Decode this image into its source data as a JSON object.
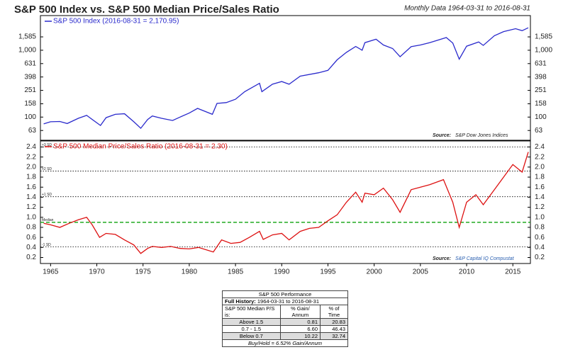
{
  "chart_data": [
    {
      "type": "line",
      "title": "S&P 500 Index vs. S&P 500 Median Price/Sales Ratio",
      "subtitle": "Monthly Data 1964-03-31 to 2016-08-31",
      "log_scale": true,
      "ylim": [
        45,
        3300
      ],
      "yticks": [
        63,
        100,
        158,
        251,
        398,
        631,
        {
          "value": 1000,
          "label": "1,000"
        },
        {
          "value": 1585,
          "label": "1,585"
        }
      ],
      "source_label": "Source:",
      "source": "S&P Dow Jones Indices",
      "x": [
        1964.25,
        1965,
        1966,
        1966.8,
        1968,
        1968.9,
        1970.4,
        1971,
        1972,
        1973,
        1974,
        1974.75,
        1975.5,
        1976,
        1977,
        1978.2,
        1979,
        1980,
        1980.9,
        1982.5,
        1983,
        1984,
        1985,
        1986,
        1987.6,
        1987.85,
        1989,
        1990,
        1990.8,
        1992,
        1994,
        1995,
        1996,
        1997,
        1998,
        1998.7,
        1999,
        2000.2,
        2001,
        2002,
        2002.8,
        2004,
        2005,
        2006,
        2007.8,
        2008.5,
        2009.2,
        2010,
        2011.3,
        2011.8,
        2013,
        2014,
        2015.3,
        2016,
        2016.67
      ],
      "series": [
        {
          "name": "S&P 500 Index (2016-08-31 = 2,170.95)",
          "color": "#2a2acc",
          "values": [
            79,
            85,
            86,
            80,
            96,
            106,
            75,
            98,
            110,
            112,
            85,
            68,
            92,
            104,
            96,
            89,
            100,
            115,
            135,
            110,
            160,
            165,
            185,
            240,
            320,
            240,
            310,
            340,
            310,
            410,
            460,
            500,
            720,
            930,
            1140,
            1000,
            1300,
            1460,
            1200,
            1060,
            800,
            1130,
            1200,
            1300,
            1550,
            1280,
            735,
            1150,
            1330,
            1180,
            1650,
            1900,
            2100,
            1960,
            2170.95
          ]
        }
      ]
    },
    {
      "type": "line",
      "ylim": [
        0.08,
        2.52
      ],
      "yticks": [
        0.2,
        0.4,
        0.6,
        0.8,
        {
          "value": 1,
          "label": "1.0"
        },
        1.2,
        1.4,
        1.6,
        1.8,
        {
          "value": 2,
          "label": "2.0"
        },
        2.2,
        2.4
      ],
      "xlim": [
        1963.9,
        2016.9
      ],
      "xticks": [
        1965,
        1970,
        1975,
        1980,
        1985,
        1990,
        1995,
        2000,
        2005,
        2010,
        2015
      ],
      "reference_lines": [
        {
          "label": "+3 SD",
          "value": 2.4,
          "color": "#000000"
        },
        {
          "label": "+2 SD",
          "value": 1.92,
          "color": "#000000"
        },
        {
          "label": "+1 SD",
          "value": 1.41,
          "color": "#000000"
        },
        {
          "label": "Median",
          "value": 0.9,
          "color": "#22aa22"
        },
        {
          "label": "-1 SD",
          "value": 0.41,
          "color": "#000000"
        }
      ],
      "source_label": "Source:",
      "source": "S&P Capital IQ Compustat",
      "x": [
        1964.25,
        1965,
        1966,
        1967,
        1968,
        1968.9,
        1969.5,
        1970.3,
        1971,
        1972,
        1973,
        1974,
        1974.75,
        1975.5,
        1976,
        1977,
        1978,
        1979,
        1980,
        1981,
        1982.6,
        1983.5,
        1984.5,
        1985.5,
        1986.5,
        1987.6,
        1988,
        1989,
        1990,
        1990.8,
        1992,
        1993,
        1994,
        1995,
        1996,
        1997,
        1998,
        1998.7,
        1999,
        2000,
        2001,
        2002,
        2002.8,
        2004,
        2005,
        2006,
        2007.5,
        2008.5,
        2009.2,
        2010,
        2011,
        2011.8,
        2013,
        2014,
        2015,
        2016,
        2016.67
      ],
      "series": [
        {
          "name": "S&P 500 Median Price/Sales Ratio (2016-08-31 = 2.30)",
          "color": "#dd1111",
          "values": [
            0.88,
            0.85,
            0.8,
            0.88,
            0.95,
            1.0,
            0.85,
            0.6,
            0.68,
            0.66,
            0.55,
            0.45,
            0.28,
            0.38,
            0.42,
            0.4,
            0.42,
            0.38,
            0.37,
            0.4,
            0.31,
            0.55,
            0.48,
            0.5,
            0.6,
            0.72,
            0.56,
            0.65,
            0.68,
            0.55,
            0.72,
            0.78,
            0.8,
            0.93,
            1.05,
            1.3,
            1.5,
            1.3,
            1.48,
            1.45,
            1.58,
            1.35,
            1.1,
            1.55,
            1.6,
            1.65,
            1.75,
            1.3,
            0.8,
            1.3,
            1.45,
            1.25,
            1.55,
            1.8,
            2.05,
            1.9,
            2.3
          ]
        }
      ]
    }
  ],
  "table": {
    "title": "S&P 500 Performance",
    "history_label": "Full History:",
    "history": "1964-03-31 to 2016-08-31",
    "header": [
      "S&P 500 Median P/S is:",
      "% Gain/ Annum",
      "% of Time"
    ],
    "rows": [
      [
        "Above 1.5",
        "0.81",
        "20.83"
      ],
      [
        "0.7 - 1.5",
        "6.60",
        "46.43"
      ],
      [
        "Below 0.7",
        "10.22",
        "32.74"
      ]
    ],
    "footnote": "Buy/Hold = 6.52% Gain/Annum"
  }
}
